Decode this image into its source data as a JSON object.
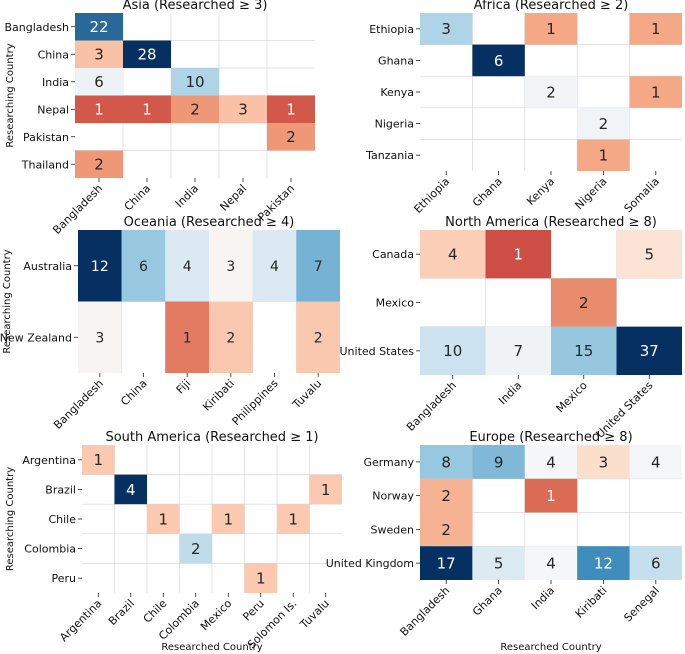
{
  "shared": {
    "ylabel": "Researching Country",
    "xlabel": "Researched Country"
  },
  "chart_data": [
    {
      "type": "heatmap",
      "title": "Asia (Researched ≥ 3)",
      "rows": [
        "Bangladesh",
        "China",
        "India",
        "Nepal",
        "Pakistan",
        "Thailand"
      ],
      "cols": [
        "Bangladesh",
        "China",
        "India",
        "Nepal",
        "Pakistan"
      ],
      "values": [
        [
          22,
          null,
          null,
          null,
          null
        ],
        [
          3,
          28,
          null,
          null,
          null
        ],
        [
          6,
          null,
          10,
          null,
          null
        ],
        [
          1,
          1,
          2,
          3,
          1
        ],
        [
          null,
          null,
          null,
          null,
          2
        ],
        [
          2,
          null,
          null,
          null,
          null
        ]
      ],
      "ylabel": "Researching Country",
      "xlabel": ""
    },
    {
      "type": "heatmap",
      "title": "Africa (Researched ≥ 2)",
      "rows": [
        "Ethiopia",
        "Ghana",
        "Kenya",
        "Nigeria",
        "Tanzania"
      ],
      "cols": [
        "Ethiopia",
        "Ghana",
        "Kenya",
        "Nigeria",
        "Somalia"
      ],
      "values": [
        [
          3,
          null,
          1,
          null,
          1
        ],
        [
          null,
          6,
          null,
          null,
          null
        ],
        [
          null,
          null,
          2,
          null,
          1
        ],
        [
          null,
          null,
          null,
          2,
          null
        ],
        [
          null,
          null,
          null,
          1,
          null
        ]
      ],
      "ylabel": "",
      "xlabel": ""
    },
    {
      "type": "heatmap",
      "title": "Oceania (Researched ≥ 4)",
      "rows": [
        "Australia",
        "New Zealand"
      ],
      "cols": [
        "Bangladesh",
        "China",
        "Fiji",
        "Kiribati",
        "Philippines",
        "Tuvalu"
      ],
      "values": [
        [
          12,
          6,
          4,
          3,
          4,
          7
        ],
        [
          3,
          null,
          1,
          2,
          null,
          2
        ]
      ],
      "ylabel": "Researching Country",
      "xlabel": ""
    },
    {
      "type": "heatmap",
      "title": "North America (Researched ≥ 8)",
      "rows": [
        "Canada",
        "Mexico",
        "United States"
      ],
      "cols": [
        "Bangladesh",
        "India",
        "Mexico",
        "United States"
      ],
      "values": [
        [
          4,
          1,
          null,
          5
        ],
        [
          null,
          null,
          2,
          null
        ],
        [
          10,
          7,
          15,
          37
        ]
      ],
      "ylabel": "",
      "xlabel": ""
    },
    {
      "type": "heatmap",
      "title": "South America (Researched ≥ 1)",
      "rows": [
        "Argentina",
        "Brazil",
        "Chile",
        "Colombia",
        "Peru"
      ],
      "cols": [
        "Argentina",
        "Brazil",
        "Chile",
        "Colombia",
        "Mexico",
        "Peru",
        "Solomon Is.",
        "Tuvalu"
      ],
      "values": [
        [
          1,
          null,
          null,
          null,
          null,
          null,
          null,
          null
        ],
        [
          null,
          4,
          null,
          null,
          null,
          null,
          null,
          1
        ],
        [
          null,
          null,
          1,
          null,
          1,
          null,
          1,
          null
        ],
        [
          null,
          null,
          null,
          2,
          null,
          null,
          null,
          null
        ],
        [
          null,
          null,
          null,
          null,
          null,
          1,
          null,
          null
        ]
      ],
      "ylabel": "Researching Country",
      "xlabel": "Researched Country"
    },
    {
      "type": "heatmap",
      "title": "Europe (Researched ≥ 8)",
      "rows": [
        "Germany",
        "Norway",
        "Sweden",
        "United Kingdom"
      ],
      "cols": [
        "Bangladesh",
        "Ghana",
        "India",
        "Kiribati",
        "Senegal"
      ],
      "values": [
        [
          8,
          9,
          4,
          3,
          4
        ],
        [
          2,
          null,
          1,
          null,
          null
        ],
        [
          2,
          null,
          null,
          null,
          null
        ],
        [
          17,
          5,
          4,
          12,
          6
        ]
      ],
      "ylabel": "",
      "xlabel": "Researched Country"
    }
  ]
}
